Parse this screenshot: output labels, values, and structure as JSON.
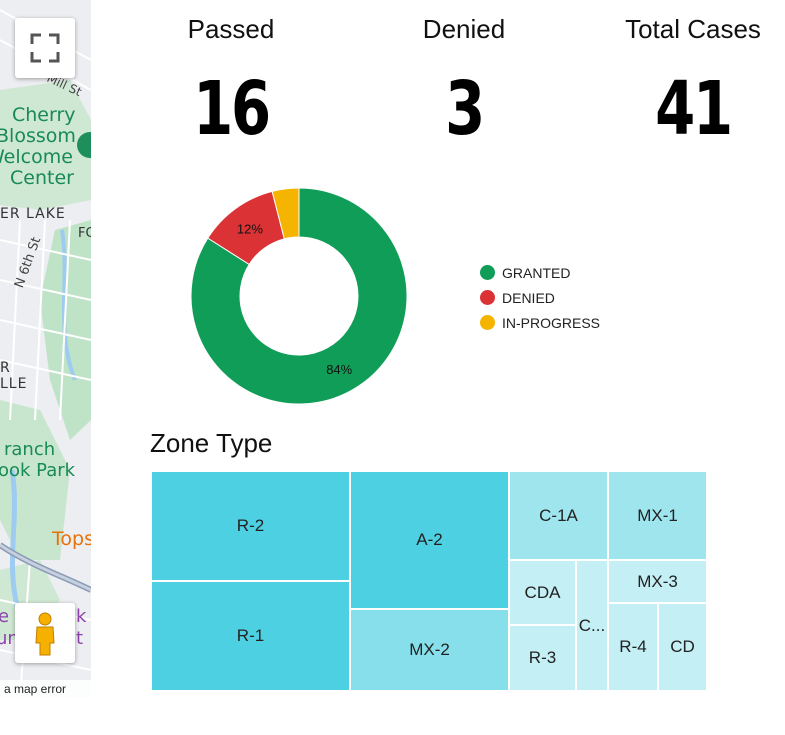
{
  "map": {
    "labels": {
      "mill_st": "Mill St",
      "cherry_blossom_1": "Cherry",
      "cherry_blossom_2": "Blossom",
      "cherry_blossom_3": "Welcome",
      "cherry_blossom_4": "Center",
      "er_lake": "ER LAKE",
      "fo": "FO",
      "n6th": "N 6th St",
      "r": "R",
      "lle": "LLE",
      "branch": "ranch",
      "ook_park": "ook Park",
      "tops": "Tops",
      "purple_1": "e",
      "purple_2": "k",
      "purple_3": "un",
      "purple_4": "t"
    },
    "fullscreen_icon": "fullscreen-icon",
    "pegman_icon": "pegman-icon",
    "error_text": "a map error"
  },
  "kpis": [
    {
      "title": "Passed",
      "value": "16"
    },
    {
      "title": "Denied",
      "value": "3"
    },
    {
      "title": "Total Cases",
      "value": "41"
    }
  ],
  "chart_data": [
    {
      "type": "pie",
      "labels": [
        "GRANTED",
        "DENIED",
        "IN-PROGRESS"
      ],
      "values": [
        84,
        12,
        4
      ],
      "slice_labels": [
        "84%",
        "12%",
        ""
      ],
      "colors": [
        "#0f9d58",
        "#db3236",
        "#f4b400"
      ],
      "legend": "right",
      "title": ""
    },
    {
      "type": "treemap",
      "title": "Zone Type",
      "categories": [
        "R-2",
        "R-1",
        "A-2",
        "MX-2",
        "C-1A",
        "MX-1",
        "CDA",
        "R-3",
        "C...",
        "MX-3",
        "R-4",
        "CD"
      ],
      "colors": [
        "#4dd0e1",
        "#4dd0e1",
        "#4dd0e1",
        "#86dfea",
        "#9ee5ee",
        "#9ee5ee",
        "#c4eff4",
        "#c4eff4",
        "#c4eff4",
        "#c4eff4",
        "#c4eff4",
        "#c4eff4"
      ]
    }
  ]
}
